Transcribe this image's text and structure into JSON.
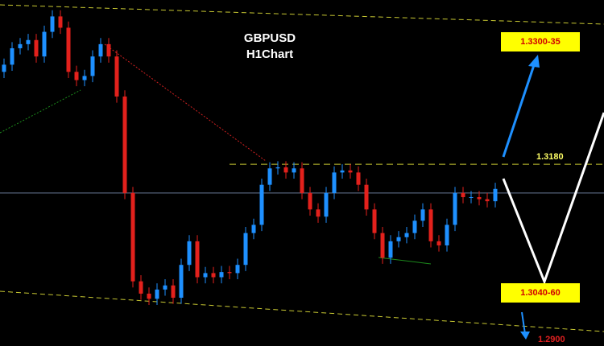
{
  "chart_data": {
    "type": "candlestick",
    "title": "GBPUSD",
    "subtitle": "H1Chart",
    "ylim": [
      1.3003,
      1.334
    ],
    "up_color": "#1e90ff",
    "down_color": "#e3211c",
    "open": [
      1.327,
      1.3277,
      1.3293,
      1.3297,
      1.3301,
      1.3285,
      1.3309,
      1.3324,
      1.3313,
      1.327,
      1.3262,
      1.3266,
      1.3285,
      1.3297,
      1.3285,
      1.3246,
      1.3152,
      1.3066,
      1.3054,
      1.3049,
      1.3058,
      1.3062,
      1.305,
      1.3082,
      1.3105,
      1.307,
      1.3074,
      1.307,
      1.3075,
      1.3074,
      1.3082,
      1.3113,
      1.3121,
      1.316,
      1.3176,
      1.3177,
      1.3172,
      1.3176,
      1.3152,
      1.3136,
      1.3129,
      1.3152,
      1.3172,
      1.3174,
      1.3172,
      1.316,
      1.3136,
      1.3113,
      1.3089,
      1.3105,
      1.3109,
      1.3113,
      1.3125,
      1.3136,
      1.3105,
      1.3101,
      1.3121,
      1.3152,
      1.3148,
      1.3148,
      1.3146,
      1.3144
    ],
    "high": [
      1.3283,
      1.3299,
      1.3303,
      1.3307,
      1.3307,
      1.3315,
      1.333,
      1.333,
      1.3319,
      1.3276,
      1.3272,
      1.3291,
      1.3303,
      1.3303,
      1.3291,
      1.3252,
      1.3158,
      1.3072,
      1.306,
      1.3064,
      1.3068,
      1.3068,
      1.3088,
      1.3111,
      1.3111,
      1.308,
      1.308,
      1.3081,
      1.3081,
      1.3088,
      1.3119,
      1.3127,
      1.3166,
      1.3182,
      1.3183,
      1.3183,
      1.3182,
      1.3182,
      1.3158,
      1.3142,
      1.3158,
      1.3178,
      1.318,
      1.318,
      1.3178,
      1.3166,
      1.3142,
      1.3119,
      1.3111,
      1.3115,
      1.3119,
      1.3131,
      1.3142,
      1.3142,
      1.3111,
      1.3127,
      1.3158,
      1.3158,
      1.3154,
      1.3154,
      1.3152,
      1.3162
    ],
    "low": [
      1.3264,
      1.3271,
      1.3287,
      1.3291,
      1.3279,
      1.3279,
      1.3303,
      1.3307,
      1.3264,
      1.3256,
      1.3256,
      1.326,
      1.3279,
      1.3279,
      1.324,
      1.3146,
      1.306,
      1.3048,
      1.3043,
      1.3043,
      1.3052,
      1.3044,
      1.3044,
      1.3076,
      1.3064,
      1.3064,
      1.3064,
      1.3064,
      1.3068,
      1.3068,
      1.3076,
      1.3107,
      1.3115,
      1.3154,
      1.317,
      1.3166,
      1.3166,
      1.3146,
      1.313,
      1.3123,
      1.3123,
      1.3146,
      1.3166,
      1.3166,
      1.3154,
      1.313,
      1.3107,
      1.3083,
      1.3083,
      1.3099,
      1.3103,
      1.3107,
      1.3119,
      1.3099,
      1.3095,
      1.3095,
      1.3115,
      1.3142,
      1.3142,
      1.314,
      1.3138,
      1.3138
    ],
    "close": [
      1.3277,
      1.3293,
      1.3297,
      1.3301,
      1.3285,
      1.3309,
      1.3324,
      1.3313,
      1.327,
      1.3262,
      1.3266,
      1.3285,
      1.3297,
      1.3285,
      1.3246,
      1.3152,
      1.3066,
      1.3054,
      1.3049,
      1.3058,
      1.3062,
      1.305,
      1.3082,
      1.3105,
      1.307,
      1.3074,
      1.307,
      1.3075,
      1.3074,
      1.3082,
      1.3113,
      1.3121,
      1.316,
      1.3176,
      1.3177,
      1.3172,
      1.3176,
      1.3152,
      1.3136,
      1.3129,
      1.3152,
      1.3172,
      1.3174,
      1.3172,
      1.316,
      1.3136,
      1.3113,
      1.3089,
      1.3105,
      1.3109,
      1.3113,
      1.3125,
      1.3136,
      1.3105,
      1.3101,
      1.3121,
      1.3152,
      1.3148,
      1.3148,
      1.3146,
      1.3144,
      1.3156
    ],
    "price_line": 1.3152,
    "level": {
      "value": 1.318,
      "label": "1.3180"
    },
    "targets": [
      "1.3300-35",
      "1.3040-60",
      "1.2900"
    ]
  }
}
